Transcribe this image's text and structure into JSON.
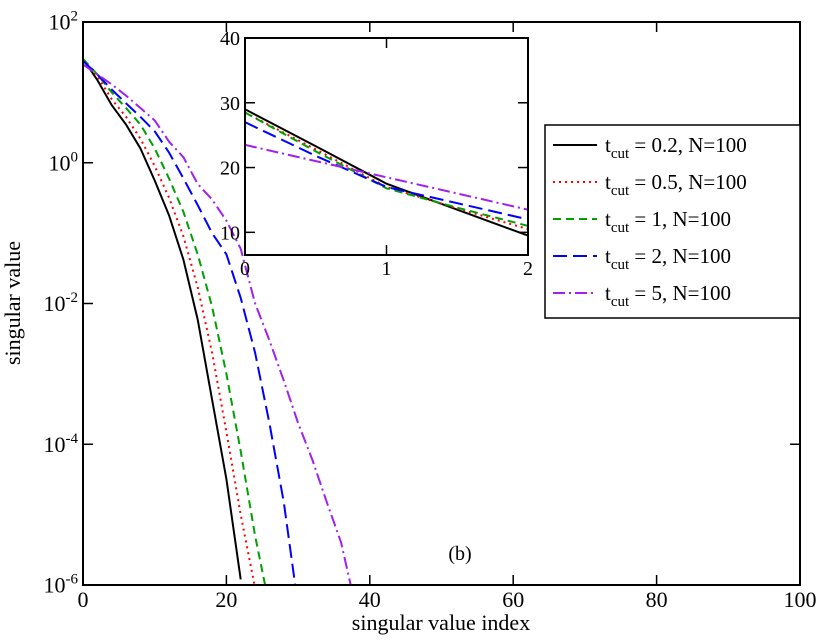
{
  "chart_data": [
    {
      "type": "line",
      "xlabel": "singular value index",
      "ylabel": "singular value",
      "annotation": "(b)",
      "log_y": true,
      "legend": "upper right",
      "xlim": [
        0,
        100
      ],
      "xticks": [
        0,
        20,
        40,
        60,
        80,
        100
      ],
      "ylim": [
        1e-06,
        100
      ],
      "yticks": [
        {
          "value": 100,
          "label": "10^2"
        },
        {
          "value": 1,
          "label": "10^0"
        },
        {
          "value": 0.01,
          "label": "10^-2"
        },
        {
          "value": 0.0001,
          "label": "10^-4"
        },
        {
          "value": 1e-06,
          "label": "10^-6"
        }
      ],
      "x": [
        0,
        2,
        4,
        6,
        8,
        10,
        12,
        14,
        16,
        18,
        20,
        22,
        24,
        26,
        28,
        30,
        32,
        34,
        36,
        38
      ],
      "series": [
        {
          "name": "t_cut = 0.2, N=100",
          "color": "#000000",
          "dash": "solid",
          "values": [
            30,
            15,
            6.6,
            3.5,
            1.6,
            0.56,
            0.18,
            0.042,
            0.0059,
            0.00043,
            3.2e-05,
            1.2e-06,
            null,
            null,
            null,
            null,
            null,
            null,
            null,
            null
          ]
        },
        {
          "name": "t_cut = 0.5, N=100",
          "color": "#ff0000",
          "dash": "dotted",
          "values": [
            30,
            17,
            8,
            4.5,
            2.2,
            0.9,
            0.32,
            0.09,
            0.017,
            0.002,
            0.00015,
            1e-05,
            9e-07,
            null,
            null,
            null,
            null,
            null,
            null,
            null
          ]
        },
        {
          "name": "t_cut = 1, N=100",
          "color": "#00a000",
          "dash": "dashed",
          "values": [
            30,
            18,
            10,
            6,
            3.5,
            1.6,
            0.6,
            0.2,
            0.05,
            0.009,
            0.001,
            8e-05,
            5e-06,
            5e-07,
            null,
            null,
            null,
            null,
            null,
            null
          ]
        },
        {
          "name": "t_cut = 2, N=100",
          "color": "#0000ff",
          "dash": "longdash",
          "values": [
            28,
            18,
            11,
            7,
            4.5,
            2.8,
            1.4,
            0.6,
            0.25,
            0.1,
            0.05,
            0.012,
            0.002,
            0.0002,
            1.5e-05,
            5e-07,
            null,
            null,
            null,
            null
          ]
        },
        {
          "name": "t_cut = 5, N=100",
          "color": "#a020f0",
          "dash": "dashdot",
          "values": [
            25,
            18,
            13,
            9,
            6,
            4,
            2,
            1.2,
            0.5,
            0.3,
            0.15,
            0.06,
            0.01,
            0.003,
            0.0008,
            0.0002,
            6e-05,
            1.5e-05,
            4e-06,
            5e-07
          ]
        }
      ]
    },
    {
      "type": "line",
      "xlim": [
        0,
        2
      ],
      "xticks": [
        0,
        1,
        2
      ],
      "ylim": [
        6.5,
        40
      ],
      "yticks": [
        10,
        20,
        30,
        40
      ],
      "x": [
        0,
        0.5,
        1,
        1.5,
        2
      ],
      "series": [
        {
          "color": "#000000",
          "dash": "solid",
          "values": [
            29,
            23.3,
            17.5,
            13.5,
            9.5
          ]
        },
        {
          "color": "#ff0000",
          "dash": "dotted",
          "values": [
            28.5,
            22.8,
            17,
            13.7,
            10.5
          ]
        },
        {
          "color": "#00a000",
          "dash": "dashed",
          "values": [
            28.5,
            22.5,
            16.8,
            13.8,
            11
          ]
        },
        {
          "color": "#0000ff",
          "dash": "longdash",
          "values": [
            27,
            21.8,
            17,
            14.5,
            12
          ]
        },
        {
          "color": "#a020f0",
          "dash": "dashdot",
          "values": [
            23.5,
            21,
            18.5,
            16,
            13.5
          ]
        }
      ]
    }
  ]
}
